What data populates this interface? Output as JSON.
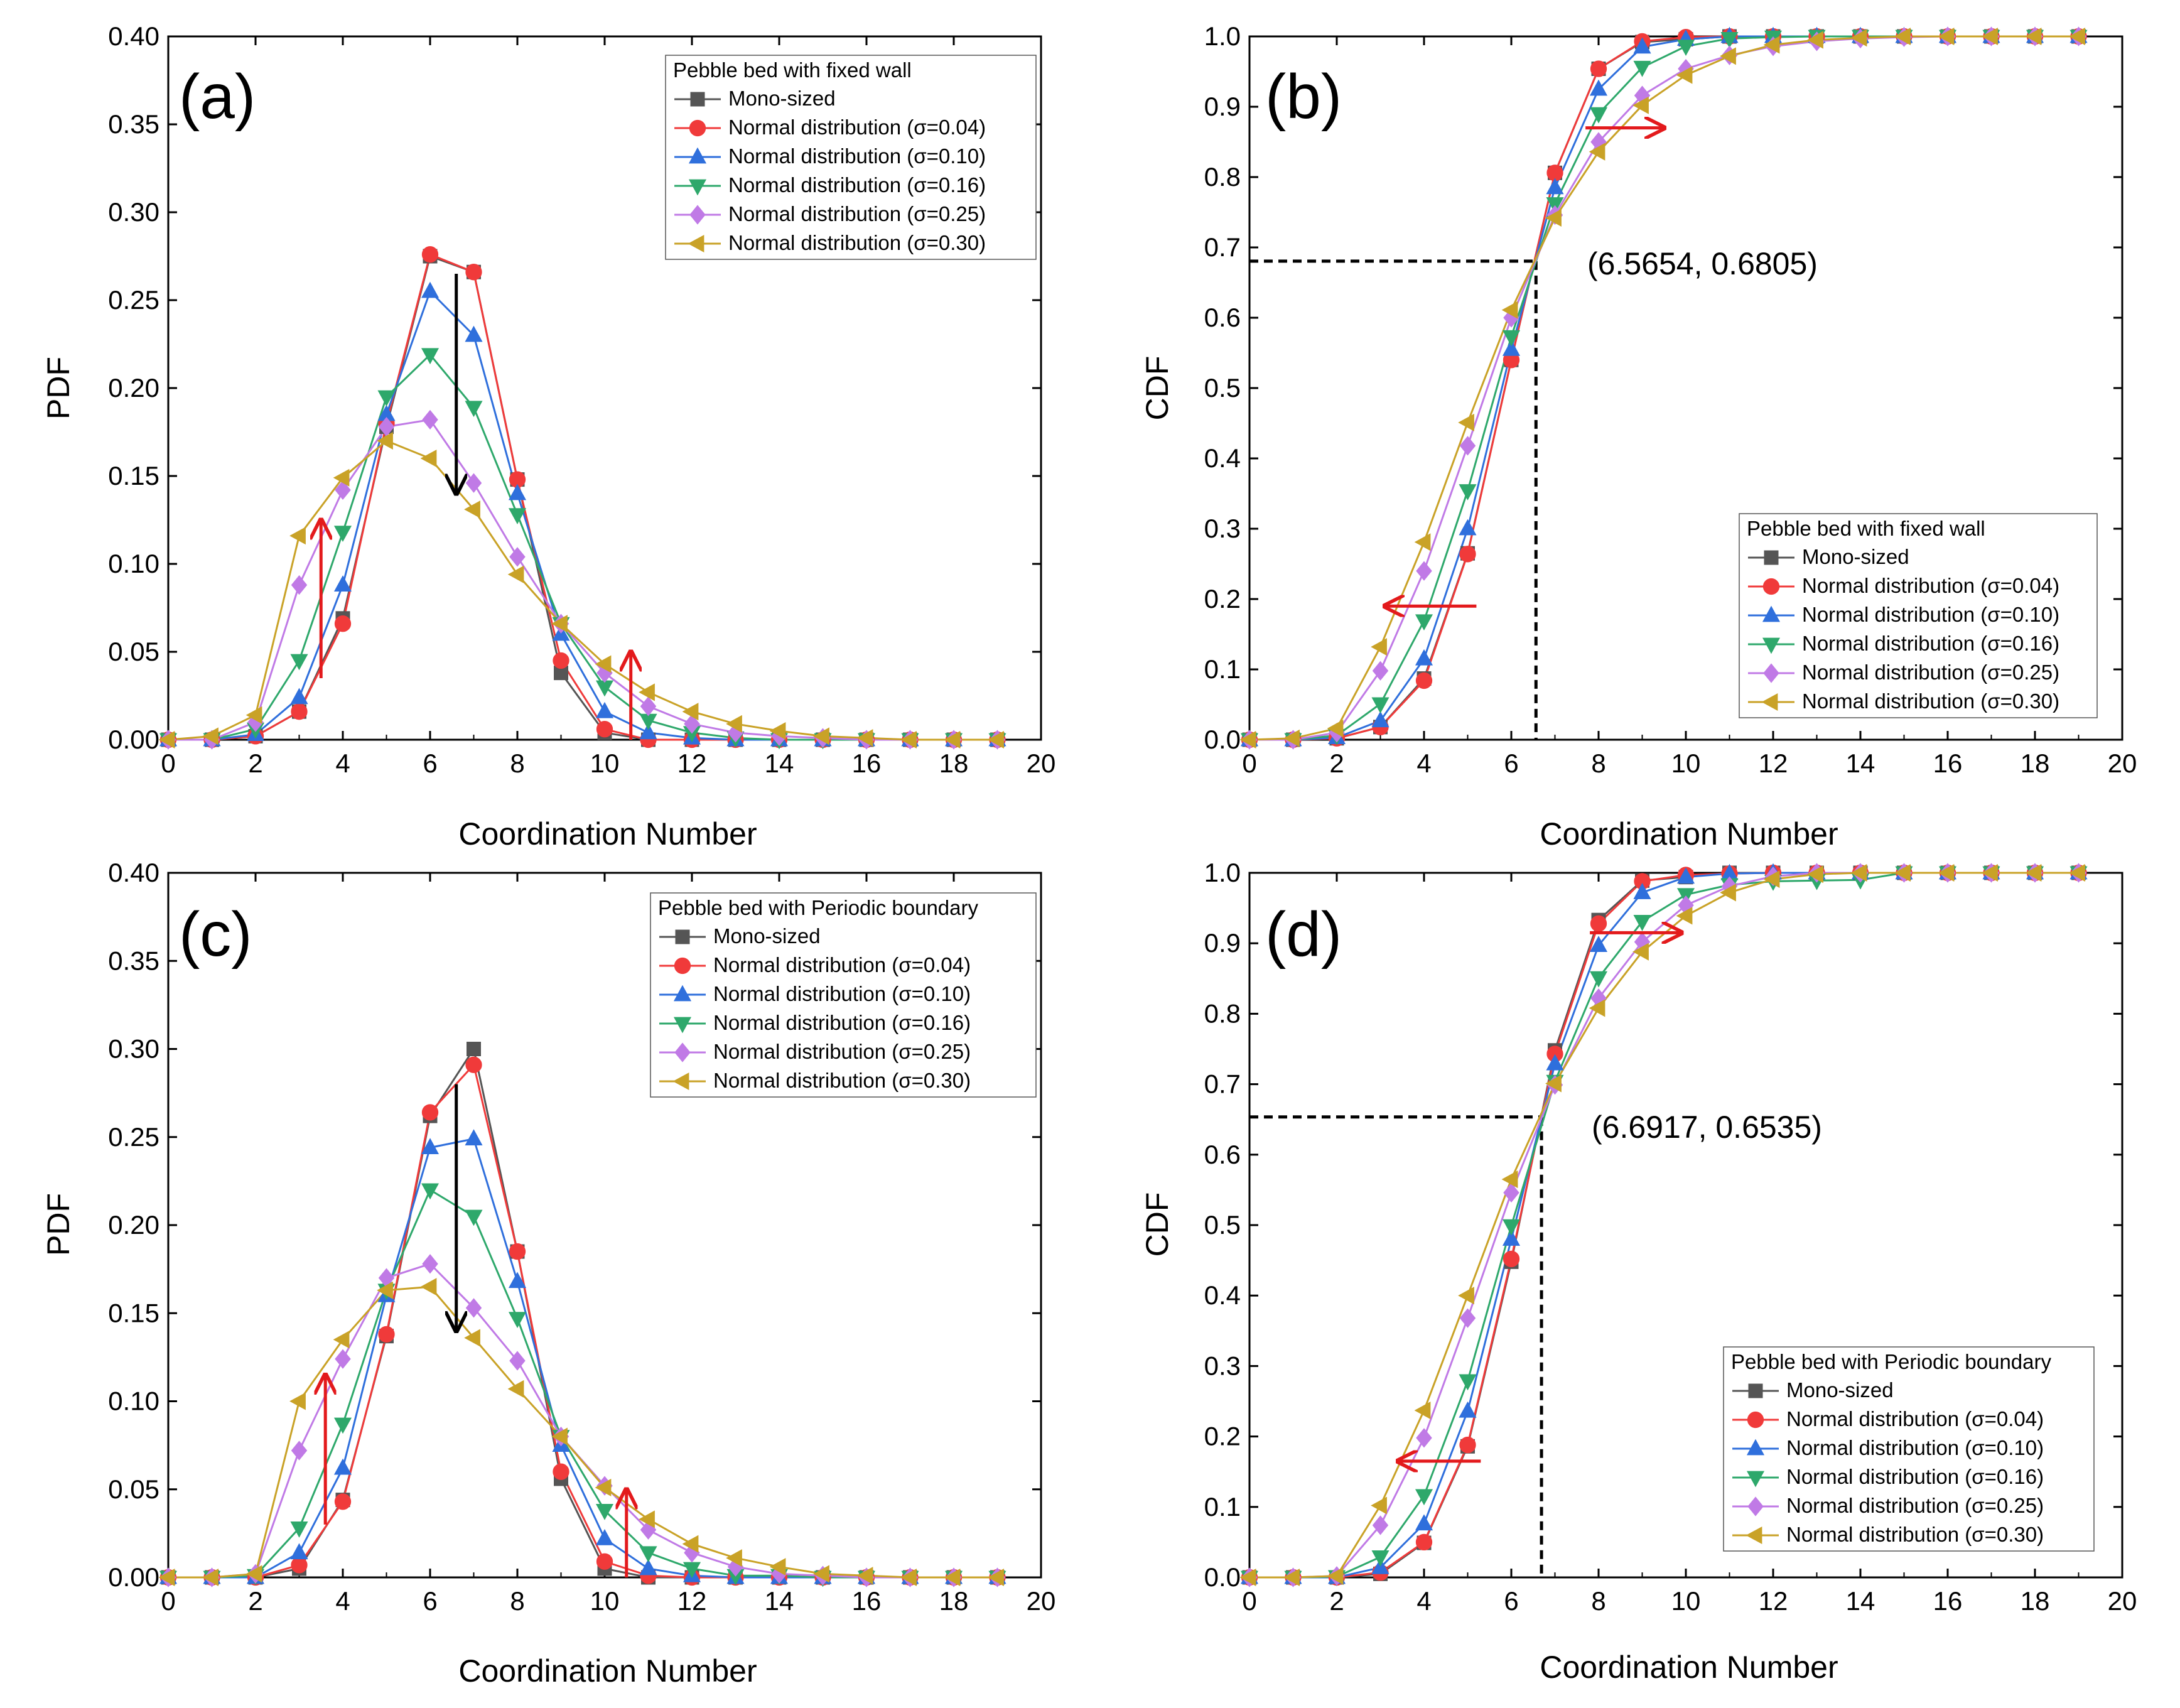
{
  "figure": {
    "series_names": [
      "Mono-sized",
      "Normal distribution (σ=0.04)",
      "Normal distribution (σ=0.10)",
      "Normal distribution (σ=0.16)",
      "Normal distribution (σ=0.25)",
      "Normal distribution (σ=0.30)"
    ],
    "series_colors": [
      "#555555",
      "#f03a3a",
      "#2f6fdc",
      "#2ea86b",
      "#c07ae6",
      "#c9a227"
    ],
    "series_markers": [
      "square",
      "circle",
      "triangle-up",
      "triangle-down",
      "diamond",
      "triangle-left"
    ]
  },
  "chart_data": [
    {
      "id": "a",
      "type": "line",
      "panel_label": "(a)",
      "xlabel": "Coordination Number",
      "ylabel": "PDF",
      "xlim": [
        0,
        20
      ],
      "ylim": [
        0,
        0.4
      ],
      "xticks": [
        "0",
        "2",
        "4",
        "6",
        "8",
        "10",
        "12",
        "14",
        "16",
        "18",
        "20"
      ],
      "yticks": [
        "0.00",
        "0.05",
        "0.10",
        "0.15",
        "0.20",
        "0.25",
        "0.30",
        "0.35",
        "0.40"
      ],
      "legend_title": "Pebble bed with fixed wall",
      "legend_position": "top-right",
      "x": [
        0,
        1,
        2,
        3,
        4,
        5,
        6,
        7,
        8,
        9,
        10,
        11,
        12,
        13,
        14,
        15,
        16,
        17,
        18,
        19
      ],
      "series": [
        {
          "name": "Mono-sized",
          "values": [
            0,
            0,
            0.002,
            0.016,
            0.069,
            0.178,
            0.275,
            0.266,
            0.148,
            0.038,
            0.004,
            0,
            0,
            0,
            0,
            0,
            0,
            0,
            0,
            0
          ]
        },
        {
          "name": "Normal distribution (σ=0.04)",
          "values": [
            0,
            0,
            0.002,
            0.016,
            0.066,
            0.18,
            0.276,
            0.266,
            0.148,
            0.045,
            0.006,
            0,
            0,
            0,
            0,
            0,
            0,
            0,
            0,
            0
          ]
        },
        {
          "name": "Normal distribution (σ=0.10)",
          "values": [
            0,
            0,
            0.003,
            0.024,
            0.088,
            0.185,
            0.255,
            0.23,
            0.14,
            0.06,
            0.016,
            0.004,
            0.001,
            0,
            0,
            0,
            0,
            0,
            0,
            0
          ]
        },
        {
          "name": "Normal distribution (σ=0.16)",
          "values": [
            0,
            0,
            0.006,
            0.045,
            0.118,
            0.195,
            0.219,
            0.189,
            0.128,
            0.066,
            0.03,
            0.011,
            0.004,
            0.001,
            0,
            0,
            0,
            0,
            0,
            0
          ]
        },
        {
          "name": "Normal distribution (σ=0.25)",
          "values": [
            0,
            0,
            0.01,
            0.088,
            0.142,
            0.178,
            0.182,
            0.146,
            0.104,
            0.066,
            0.038,
            0.019,
            0.009,
            0.004,
            0.002,
            0.001,
            0,
            0,
            0,
            0
          ]
        },
        {
          "name": "Normal distribution (σ=0.30)",
          "values": [
            0,
            0.002,
            0.014,
            0.116,
            0.149,
            0.17,
            0.16,
            0.131,
            0.094,
            0.066,
            0.043,
            0.027,
            0.016,
            0.009,
            0.005,
            0.002,
            0.001,
            0,
            0,
            0
          ]
        }
      ],
      "arrows": [
        {
          "color": "#e31a1c",
          "from": [
            3.5,
            0.035
          ],
          "to": [
            3.5,
            0.125
          ]
        },
        {
          "color": "#e31a1c",
          "from": [
            10.6,
            0.0
          ],
          "to": [
            10.6,
            0.05
          ]
        },
        {
          "color": "#000000",
          "from": [
            6.6,
            0.265
          ],
          "to": [
            6.6,
            0.14
          ]
        }
      ]
    },
    {
      "id": "b",
      "type": "line",
      "panel_label": "(b)",
      "xlabel": "Coordination Number",
      "ylabel": "CDF",
      "xlim": [
        0,
        20
      ],
      "ylim": [
        0,
        1.0
      ],
      "xticks": [
        "0",
        "2",
        "4",
        "6",
        "8",
        "10",
        "12",
        "14",
        "16",
        "18",
        "20"
      ],
      "yticks": [
        "0.0",
        "0.1",
        "0.2",
        "0.3",
        "0.4",
        "0.5",
        "0.6",
        "0.7",
        "0.8",
        "0.9",
        "1.0"
      ],
      "legend_title": "Pebble bed with fixed wall",
      "legend_position": "bottom-right",
      "annotation": "(6.5654, 0.6805)",
      "crosshair": [
        6.5654,
        0.6805
      ],
      "x": [
        0,
        1,
        2,
        3,
        4,
        5,
        6,
        7,
        8,
        9,
        10,
        11,
        12,
        13,
        14,
        15,
        16,
        17,
        18,
        19
      ],
      "series": [
        {
          "name": "Mono-sized",
          "values": [
            0,
            0,
            0.002,
            0.018,
            0.087,
            0.265,
            0.54,
            0.806,
            0.954,
            0.992,
            0.996,
            1,
            1,
            1,
            1,
            1,
            1,
            1,
            1,
            1
          ]
        },
        {
          "name": "Normal distribution (σ=0.04)",
          "values": [
            0,
            0,
            0.002,
            0.018,
            0.084,
            0.264,
            0.54,
            0.806,
            0.954,
            0.993,
            0.999,
            1,
            1,
            1,
            1,
            1,
            1,
            1,
            1,
            1
          ]
        },
        {
          "name": "Normal distribution (σ=0.10)",
          "values": [
            0,
            0,
            0.003,
            0.027,
            0.115,
            0.3,
            0.555,
            0.785,
            0.925,
            0.985,
            0.996,
            1,
            1,
            1,
            1,
            1,
            1,
            1,
            1,
            1
          ]
        },
        {
          "name": "Normal distribution (σ=0.16)",
          "values": [
            0,
            0,
            0.006,
            0.051,
            0.169,
            0.354,
            0.573,
            0.762,
            0.89,
            0.956,
            0.986,
            0.997,
            0.999,
            1,
            1,
            1,
            1,
            1,
            1,
            1
          ]
        },
        {
          "name": "Normal distribution (σ=0.25)",
          "values": [
            0,
            0,
            0.01,
            0.098,
            0.24,
            0.418,
            0.6,
            0.746,
            0.85,
            0.916,
            0.954,
            0.973,
            0.986,
            0.993,
            0.997,
            0.999,
            1,
            1,
            1,
            1
          ]
        },
        {
          "name": "Normal distribution (σ=0.30)",
          "values": [
            0,
            0.002,
            0.016,
            0.132,
            0.281,
            0.451,
            0.611,
            0.742,
            0.836,
            0.902,
            0.945,
            0.972,
            0.988,
            0.995,
            0.998,
            1,
            1,
            1,
            1,
            1
          ]
        }
      ],
      "arrows": [
        {
          "color": "#e31a1c",
          "from": [
            5.2,
            0.19
          ],
          "to": [
            3.1,
            0.19
          ]
        },
        {
          "color": "#e31a1c",
          "from": [
            7.7,
            0.87
          ],
          "to": [
            9.5,
            0.87
          ]
        }
      ]
    },
    {
      "id": "c",
      "type": "line",
      "panel_label": "(c)",
      "xlabel": "Coordination Number",
      "ylabel": "PDF",
      "xlim": [
        0,
        20
      ],
      "ylim": [
        0,
        0.4
      ],
      "xticks": [
        "0",
        "2",
        "4",
        "6",
        "8",
        "10",
        "12",
        "14",
        "16",
        "18",
        "20"
      ],
      "yticks": [
        "0.00",
        "0.05",
        "0.10",
        "0.15",
        "0.20",
        "0.25",
        "0.30",
        "0.35",
        "0.40"
      ],
      "legend_title": "Pebble bed with Periodic boundary",
      "legend_position": "top-right",
      "x": [
        0,
        1,
        2,
        3,
        4,
        5,
        6,
        7,
        8,
        9,
        10,
        11,
        12,
        13,
        14,
        15,
        16,
        17,
        18,
        19
      ],
      "series": [
        {
          "name": "Mono-sized",
          "values": [
            0,
            0,
            0,
            0.005,
            0.044,
            0.137,
            0.262,
            0.3,
            0.185,
            0.056,
            0.005,
            0,
            0,
            0,
            0,
            0,
            0,
            0,
            0,
            0
          ]
        },
        {
          "name": "Normal distribution (σ=0.04)",
          "values": [
            0,
            0,
            0,
            0.007,
            0.043,
            0.138,
            0.264,
            0.291,
            0.185,
            0.06,
            0.009,
            0.001,
            0,
            0,
            0,
            0,
            0,
            0,
            0,
            0
          ]
        },
        {
          "name": "Normal distribution (σ=0.10)",
          "values": [
            0,
            0,
            0,
            0.014,
            0.062,
            0.16,
            0.244,
            0.249,
            0.168,
            0.075,
            0.022,
            0.005,
            0.001,
            0,
            0,
            0,
            0,
            0,
            0,
            0
          ]
        },
        {
          "name": "Normal distribution (σ=0.16)",
          "values": [
            0,
            0,
            0.001,
            0.028,
            0.087,
            0.163,
            0.22,
            0.205,
            0.147,
            0.08,
            0.038,
            0.014,
            0.005,
            0.001,
            0.001,
            0,
            0,
            0,
            0,
            0
          ]
        },
        {
          "name": "Normal distribution (σ=0.25)",
          "values": [
            0,
            0,
            0.002,
            0.072,
            0.124,
            0.17,
            0.178,
            0.153,
            0.123,
            0.08,
            0.052,
            0.027,
            0.014,
            0.006,
            0.002,
            0.001,
            0,
            0,
            0,
            0
          ]
        },
        {
          "name": "Normal distribution (σ=0.30)",
          "values": [
            0,
            0,
            0.002,
            0.1,
            0.135,
            0.163,
            0.165,
            0.136,
            0.107,
            0.08,
            0.051,
            0.033,
            0.019,
            0.011,
            0.006,
            0.002,
            0.001,
            0,
            0,
            0
          ]
        }
      ],
      "arrows": [
        {
          "color": "#e31a1c",
          "from": [
            3.6,
            0.03
          ],
          "to": [
            3.6,
            0.115
          ]
        },
        {
          "color": "#e31a1c",
          "from": [
            10.5,
            0.0
          ],
          "to": [
            10.5,
            0.05
          ]
        },
        {
          "color": "#000000",
          "from": [
            6.6,
            0.28
          ],
          "to": [
            6.6,
            0.14
          ]
        }
      ]
    },
    {
      "id": "d",
      "type": "line",
      "panel_label": "(d)",
      "xlabel": "Coordination Number",
      "ylabel": "CDF",
      "xlim": [
        0,
        20
      ],
      "ylim": [
        0,
        1.0
      ],
      "xticks": [
        "0",
        "2",
        "4",
        "6",
        "8",
        "10",
        "12",
        "14",
        "16",
        "18",
        "20"
      ],
      "yticks": [
        "0.0",
        "0.1",
        "0.2",
        "0.3",
        "0.4",
        "0.5",
        "0.6",
        "0.7",
        "0.8",
        "0.9",
        "1.0"
      ],
      "legend_title": "Pebble bed with Periodic boundary",
      "legend_position": "bottom-right",
      "annotation": "(6.6917, 0.6535)",
      "crosshair": [
        6.6917,
        0.6535
      ],
      "x": [
        0,
        1,
        2,
        3,
        4,
        5,
        6,
        7,
        8,
        9,
        10,
        11,
        12,
        13,
        14,
        15,
        16,
        17,
        18,
        19
      ],
      "series": [
        {
          "name": "Mono-sized",
          "values": [
            0,
            0,
            0,
            0.005,
            0.049,
            0.186,
            0.448,
            0.748,
            0.933,
            0.989,
            0.994,
            1,
            1,
            1,
            1,
            1,
            1,
            1,
            1,
            1
          ]
        },
        {
          "name": "Normal distribution (σ=0.04)",
          "values": [
            0,
            0,
            0,
            0.007,
            0.05,
            0.188,
            0.452,
            0.743,
            0.928,
            0.988,
            0.997,
            0.999,
            1,
            1,
            1,
            1,
            1,
            1,
            1,
            1
          ]
        },
        {
          "name": "Normal distribution (σ=0.10)",
          "values": [
            0,
            0,
            0,
            0.014,
            0.076,
            0.236,
            0.48,
            0.729,
            0.897,
            0.972,
            0.994,
            0.999,
            1,
            1,
            1,
            1,
            1,
            1,
            1,
            1
          ]
        },
        {
          "name": "Normal distribution (σ=0.16)",
          "values": [
            0,
            0,
            0.001,
            0.029,
            0.116,
            0.279,
            0.499,
            0.704,
            0.851,
            0.931,
            0.969,
            0.983,
            0.988,
            0.989,
            0.99,
            1,
            1,
            1,
            1,
            1
          ]
        },
        {
          "name": "Normal distribution (σ=0.25)",
          "values": [
            0,
            0,
            0.002,
            0.074,
            0.198,
            0.368,
            0.546,
            0.699,
            0.822,
            0.902,
            0.954,
            0.981,
            0.995,
            1,
            1,
            1,
            1,
            1,
            1,
            1
          ]
        },
        {
          "name": "Normal distribution (σ=0.30)",
          "values": [
            0,
            0,
            0.002,
            0.102,
            0.237,
            0.4,
            0.565,
            0.701,
            0.808,
            0.888,
            0.939,
            0.972,
            0.991,
            0.998,
            1,
            1,
            1,
            1,
            1,
            1
          ]
        }
      ],
      "arrows": [
        {
          "color": "#e31a1c",
          "from": [
            5.3,
            0.165
          ],
          "to": [
            3.4,
            0.165
          ]
        },
        {
          "color": "#e31a1c",
          "from": [
            7.8,
            0.915
          ],
          "to": [
            9.9,
            0.915
          ]
        }
      ]
    }
  ]
}
